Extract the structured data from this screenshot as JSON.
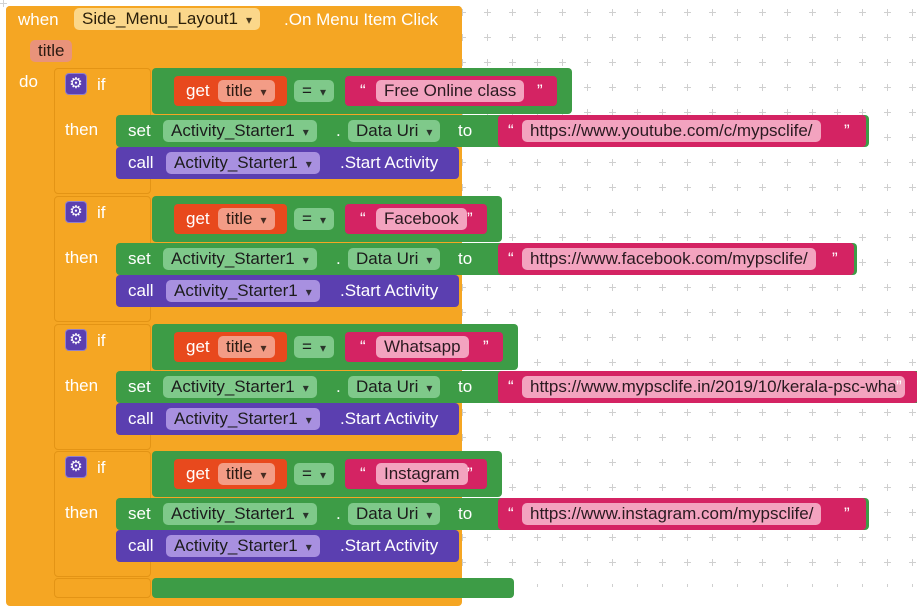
{
  "event": {
    "when": "when",
    "component": "Side_Menu_Layout1",
    "event_name": ".On Menu Item Click",
    "param": "title",
    "do": "do"
  },
  "labels": {
    "if": "if",
    "then": "then",
    "get": "get",
    "param": "title",
    "eq": "=",
    "set": "set",
    "call": "call",
    "component": "Activity_Starter1",
    "dot": ".",
    "property": "Data Uri",
    "to": "to",
    "method": ".Start Activity",
    "quote_open": "“",
    "quote_close": "”"
  },
  "branches": [
    {
      "match": "Free Online class",
      "url": "https://www.youtube.com/c/mypsclife/"
    },
    {
      "match": "Facebook",
      "url": "https://www.facebook.com/mypsclife/"
    },
    {
      "match": "Whatsapp",
      "url": "https://www.mypsclife.in/2019/10/kerala-psc-wha"
    },
    {
      "match": "Instagram",
      "url": "https://www.instagram.com/mypsclife/"
    }
  ],
  "colors": {
    "event_block": "#f5a623",
    "control_block": "#f5a623",
    "logic_compare": "#3d9c46",
    "setter": "#3d9c46",
    "method_call": "#5b3fb0",
    "variable_get": "#e8491d",
    "text_block": "#d42363"
  }
}
